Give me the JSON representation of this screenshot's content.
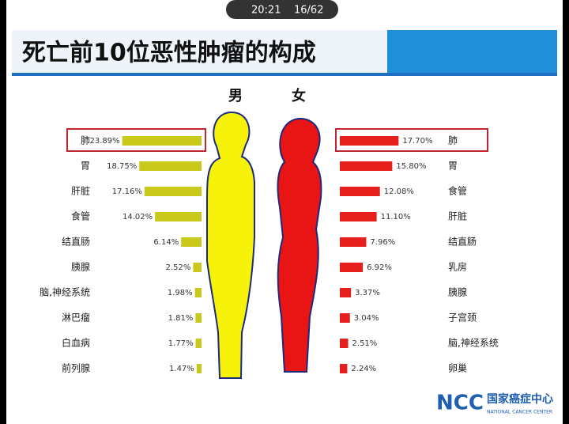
{
  "status": {
    "time": "20:21",
    "page": "16/62"
  },
  "slide_title": "死亡前10位恶性肿瘤的构成",
  "logo": {
    "mark": "NCC",
    "name": "国家癌症中心",
    "name_en": "NATIONAL CANCER CENTER"
  },
  "chart_data": [
    {
      "type": "bar",
      "title": "男",
      "color": "#c9c91c",
      "xlim": [
        0,
        25
      ],
      "categories": [
        "肺",
        "胃",
        "肝脏",
        "食管",
        "结直肠",
        "胰腺",
        "脑,神经系统",
        "淋巴瘤",
        "白血病",
        "前列腺"
      ],
      "values": [
        23.89,
        18.75,
        17.16,
        14.02,
        6.14,
        2.52,
        1.98,
        1.81,
        1.77,
        1.47
      ],
      "value_labels": [
        "23.89%",
        "18.75%",
        "17.16%",
        "14.02%",
        "6.14%",
        "2.52%",
        "1.98%",
        "1.81%",
        "1.77%",
        "1.47%"
      ]
    },
    {
      "type": "bar",
      "title": "女",
      "color": "#e5201c",
      "xlim": [
        0,
        25
      ],
      "categories": [
        "肺",
        "胃",
        "食管",
        "肝脏",
        "结直肠",
        "乳房",
        "胰腺",
        "子宫颈",
        "脑,神经系统",
        "卵巢"
      ],
      "values": [
        17.7,
        15.8,
        12.08,
        11.1,
        7.96,
        6.92,
        3.37,
        3.04,
        2.51,
        2.24
      ],
      "value_labels": [
        "17.70%",
        "15.80%",
        "12.08%",
        "11.10%",
        "7.96%",
        "6.92%",
        "3.37%",
        "3.04%",
        "2.51%",
        "2.24%"
      ]
    }
  ]
}
